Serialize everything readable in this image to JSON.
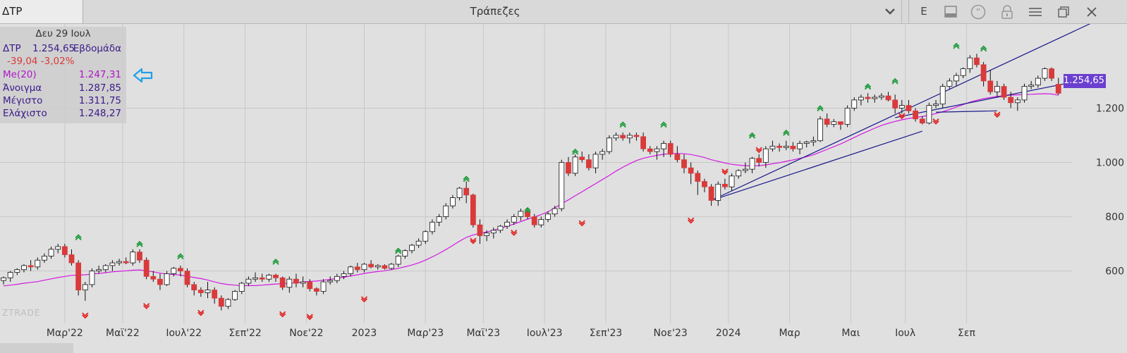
{
  "toolbar": {
    "symbol": "ΔΤΡ",
    "title": "Τράπεζες",
    "dropdown_icon": "chevron-down-icon",
    "e_label": "E",
    "icons": [
      "panel-icon",
      "quote-icon",
      "lock-icon",
      "menu-icon",
      "restore-window-icon",
      "close-icon"
    ]
  },
  "info": {
    "date": "Δευ 29 Ιουλ",
    "symbol": "ΔΤΡ",
    "price": "1.254,65",
    "period": "Εβδομάδα",
    "change": "-39,04 -3,02%",
    "ma_label": "Me(20)",
    "ma_value": "1.247,31",
    "open_label": "Άνοιγμα",
    "open_value": "1.287,85",
    "high_label": "Μέγιστο",
    "high_value": "1.311,75",
    "low_label": "Ελάχιστο",
    "low_value": "1.248,27"
  },
  "logo": "ZTRADE",
  "price_tag": "1.254,65",
  "colors": {
    "up_body": "#ffffff",
    "down_body": "#d93a3a",
    "ma_line": "#d21be0",
    "trend_line": "#1a1a8a",
    "up_arrow": "#1e9a3a",
    "down_arrow": "#e02626",
    "price_tag": "#6b3fd0",
    "pointer_arrow": "#1fa0e8"
  },
  "chart_data": {
    "type": "candlestick",
    "period": "weekly",
    "ylim": [
      420,
      1510
    ],
    "y_ticks": [
      {
        "value": 600,
        "label": "600"
      },
      {
        "value": 800,
        "label": "800"
      },
      {
        "value": 1000,
        "label": "1.000"
      },
      {
        "value": 1200,
        "label": "1.200"
      }
    ],
    "x_labels": [
      {
        "index": 9,
        "label": "Μαρ'22"
      },
      {
        "index": 17.5,
        "label": "Μαϊ'22"
      },
      {
        "index": 26.5,
        "label": "Ιουλ'22"
      },
      {
        "index": 35.5,
        "label": "Σεπ'22"
      },
      {
        "index": 44.5,
        "label": "Νοε'22"
      },
      {
        "index": 53,
        "label": "2023"
      },
      {
        "index": 62,
        "label": "Μαρ'23"
      },
      {
        "index": 70.5,
        "label": "Μαϊ'23"
      },
      {
        "index": 79.5,
        "label": "Ιουλ'23"
      },
      {
        "index": 88.5,
        "label": "Σεπ'23"
      },
      {
        "index": 98,
        "label": "Νοε'23"
      },
      {
        "index": 106.5,
        "label": "2024"
      },
      {
        "index": 115.5,
        "label": "Μαρ"
      },
      {
        "index": 124.5,
        "label": "Μαι"
      },
      {
        "index": 132.5,
        "label": "Ιουλ"
      },
      {
        "index": 141.5,
        "label": "Σεπ"
      }
    ],
    "candles": [
      [
        565,
        580,
        550,
        575
      ],
      [
        575,
        600,
        560,
        595
      ],
      [
        595,
        610,
        585,
        605
      ],
      [
        605,
        625,
        595,
        620
      ],
      [
        620,
        640,
        600,
        615
      ],
      [
        615,
        650,
        605,
        640
      ],
      [
        640,
        665,
        630,
        655
      ],
      [
        655,
        690,
        645,
        680
      ],
      [
        680,
        700,
        665,
        690
      ],
      [
        690,
        700,
        650,
        660
      ],
      [
        660,
        680,
        620,
        630
      ],
      [
        630,
        640,
        510,
        530
      ],
      [
        530,
        560,
        490,
        550
      ],
      [
        550,
        610,
        540,
        600
      ],
      [
        600,
        620,
        590,
        605
      ],
      [
        605,
        625,
        595,
        620
      ],
      [
        620,
        640,
        600,
        630
      ],
      [
        630,
        645,
        620,
        635
      ],
      [
        635,
        650,
        625,
        630
      ],
      [
        630,
        680,
        620,
        670
      ],
      [
        670,
        680,
        630,
        640
      ],
      [
        640,
        650,
        570,
        580
      ],
      [
        580,
        600,
        560,
        570
      ],
      [
        570,
        590,
        530,
        550
      ],
      [
        550,
        600,
        545,
        590
      ],
      [
        590,
        615,
        580,
        610
      ],
      [
        610,
        620,
        580,
        600
      ],
      [
        600,
        610,
        540,
        550
      ],
      [
        550,
        560,
        510,
        530
      ],
      [
        530,
        540,
        505,
        520
      ],
      [
        520,
        560,
        500,
        530
      ],
      [
        530,
        540,
        480,
        500
      ],
      [
        500,
        510,
        455,
        470
      ],
      [
        470,
        500,
        460,
        495
      ],
      [
        495,
        530,
        490,
        525
      ],
      [
        525,
        560,
        515,
        555
      ],
      [
        555,
        580,
        545,
        570
      ],
      [
        570,
        595,
        560,
        575
      ],
      [
        575,
        590,
        560,
        570
      ],
      [
        570,
        590,
        560,
        585
      ],
      [
        585,
        590,
        560,
        575
      ],
      [
        575,
        580,
        530,
        540
      ],
      [
        540,
        580,
        520,
        570
      ],
      [
        570,
        590,
        540,
        555
      ],
      [
        555,
        580,
        540,
        560
      ],
      [
        560,
        570,
        525,
        535
      ],
      [
        535,
        540,
        510,
        525
      ],
      [
        525,
        570,
        515,
        560
      ],
      [
        560,
        580,
        550,
        565
      ],
      [
        565,
        590,
        555,
        580
      ],
      [
        580,
        600,
        570,
        590
      ],
      [
        590,
        620,
        580,
        615
      ],
      [
        615,
        630,
        595,
        605
      ],
      [
        605,
        630,
        595,
        625
      ],
      [
        625,
        640,
        610,
        615
      ],
      [
        615,
        625,
        605,
        620
      ],
      [
        620,
        625,
        605,
        610
      ],
      [
        610,
        630,
        605,
        625
      ],
      [
        625,
        660,
        615,
        655
      ],
      [
        655,
        680,
        645,
        675
      ],
      [
        675,
        700,
        665,
        695
      ],
      [
        695,
        720,
        685,
        710
      ],
      [
        710,
        750,
        700,
        745
      ],
      [
        745,
        790,
        735,
        780
      ],
      [
        780,
        810,
        765,
        800
      ],
      [
        800,
        850,
        790,
        840
      ],
      [
        840,
        880,
        830,
        870
      ],
      [
        870,
        910,
        860,
        905
      ],
      [
        905,
        930,
        850,
        880
      ],
      [
        880,
        885,
        760,
        770
      ],
      [
        770,
        790,
        700,
        730
      ],
      [
        730,
        750,
        710,
        740
      ],
      [
        740,
        760,
        720,
        750
      ],
      [
        750,
        770,
        740,
        765
      ],
      [
        765,
        790,
        755,
        780
      ],
      [
        780,
        810,
        770,
        800
      ],
      [
        800,
        830,
        785,
        820
      ],
      [
        820,
        830,
        790,
        800
      ],
      [
        800,
        810,
        760,
        770
      ],
      [
        770,
        800,
        760,
        790
      ],
      [
        790,
        820,
        780,
        810
      ],
      [
        810,
        840,
        800,
        830
      ],
      [
        830,
        1010,
        820,
        1000
      ],
      [
        1000,
        1020,
        950,
        960
      ],
      [
        960,
        1030,
        950,
        1020
      ],
      [
        1020,
        1040,
        1000,
        1010
      ],
      [
        1010,
        1030,
        970,
        980
      ],
      [
        980,
        1040,
        960,
        1030
      ],
      [
        1030,
        1050,
        1010,
        1040
      ],
      [
        1040,
        1100,
        1030,
        1090
      ],
      [
        1090,
        1110,
        1080,
        1100
      ],
      [
        1100,
        1110,
        1080,
        1090
      ],
      [
        1090,
        1110,
        1070,
        1100
      ],
      [
        1100,
        1110,
        1080,
        1095
      ],
      [
        1095,
        1110,
        1040,
        1050
      ],
      [
        1050,
        1060,
        1030,
        1040
      ],
      [
        1040,
        1060,
        1010,
        1050
      ],
      [
        1050,
        1080,
        1020,
        1070
      ],
      [
        1070,
        1080,
        1020,
        1030
      ],
      [
        1030,
        1060,
        1000,
        1010
      ],
      [
        1010,
        1030,
        960,
        980
      ],
      [
        980,
        1000,
        920,
        960
      ],
      [
        960,
        970,
        880,
        930
      ],
      [
        930,
        940,
        890,
        910
      ],
      [
        910,
        920,
        840,
        860
      ],
      [
        860,
        930,
        840,
        920
      ],
      [
        920,
        940,
        900,
        910
      ],
      [
        910,
        960,
        895,
        950
      ],
      [
        950,
        975,
        940,
        970
      ],
      [
        970,
        1000,
        960,
        975
      ],
      [
        975,
        1020,
        960,
        1015
      ],
      [
        1015,
        1030,
        985,
        1000
      ],
      [
        1000,
        1060,
        980,
        1050
      ],
      [
        1050,
        1080,
        1040,
        1060
      ],
      [
        1060,
        1070,
        1040,
        1055
      ],
      [
        1055,
        1080,
        1045,
        1060
      ],
      [
        1060,
        1075,
        1040,
        1050
      ],
      [
        1050,
        1080,
        1030,
        1070
      ],
      [
        1070,
        1080,
        1055,
        1075
      ],
      [
        1075,
        1095,
        1060,
        1080
      ],
      [
        1080,
        1170,
        1075,
        1160
      ],
      [
        1160,
        1180,
        1130,
        1140
      ],
      [
        1140,
        1160,
        1130,
        1150
      ],
      [
        1150,
        1150,
        1120,
        1140
      ],
      [
        1140,
        1210,
        1130,
        1200
      ],
      [
        1200,
        1240,
        1190,
        1230
      ],
      [
        1230,
        1250,
        1210,
        1240
      ],
      [
        1240,
        1255,
        1220,
        1235
      ],
      [
        1235,
        1250,
        1220,
        1240
      ],
      [
        1240,
        1255,
        1230,
        1245
      ],
      [
        1245,
        1260,
        1225,
        1230
      ],
      [
        1230,
        1250,
        1180,
        1200
      ],
      [
        1200,
        1230,
        1180,
        1210
      ],
      [
        1210,
        1230,
        1180,
        1190
      ],
      [
        1190,
        1200,
        1150,
        1160
      ],
      [
        1160,
        1170,
        1140,
        1145
      ],
      [
        1145,
        1220,
        1140,
        1210
      ],
      [
        1210,
        1230,
        1200,
        1215
      ],
      [
        1215,
        1290,
        1200,
        1280
      ],
      [
        1280,
        1310,
        1270,
        1300
      ],
      [
        1300,
        1330,
        1280,
        1320
      ],
      [
        1320,
        1350,
        1310,
        1345
      ],
      [
        1345,
        1395,
        1330,
        1385
      ],
      [
        1385,
        1400,
        1350,
        1360
      ],
      [
        1360,
        1370,
        1280,
        1300
      ],
      [
        1300,
        1340,
        1250,
        1260
      ],
      [
        1260,
        1300,
        1240,
        1280
      ],
      [
        1280,
        1290,
        1230,
        1240
      ],
      [
        1240,
        1260,
        1200,
        1220
      ],
      [
        1220,
        1240,
        1190,
        1230
      ],
      [
        1230,
        1290,
        1220,
        1280
      ],
      [
        1280,
        1300,
        1270,
        1285
      ],
      [
        1285,
        1320,
        1275,
        1310
      ],
      [
        1310,
        1350,
        1300,
        1345
      ],
      [
        1345,
        1350,
        1300,
        1310
      ],
      [
        1287.85,
        1311.75,
        1248.27,
        1254.65
      ]
    ],
    "ma20": [
      545,
      548,
      551,
      555,
      558,
      561,
      566,
      571,
      576,
      580,
      584,
      585,
      586,
      589,
      591,
      594,
      597,
      599,
      601,
      603,
      604,
      601,
      597,
      592,
      589,
      587,
      585,
      581,
      576,
      572,
      567,
      560,
      554,
      550,
      548,
      546,
      546,
      546,
      548,
      550,
      552,
      553,
      555,
      557,
      560,
      562,
      563,
      566,
      569,
      573,
      577,
      582,
      586,
      591,
      595,
      598,
      601,
      605,
      610,
      616,
      622,
      630,
      640,
      652,
      665,
      679,
      694,
      710,
      724,
      733,
      739,
      744,
      750,
      757,
      765,
      773,
      782,
      791,
      799,
      808,
      818,
      833,
      848,
      862,
      877,
      892,
      907,
      922,
      937,
      952,
      968,
      982,
      995,
      1007,
      1015,
      1021,
      1026,
      1030,
      1033,
      1033,
      1032,
      1029,
      1024,
      1018,
      1010,
      1004,
      998,
      993,
      990,
      988,
      987,
      988,
      991,
      995,
      999,
      1004,
      1009,
      1015,
      1021,
      1028,
      1038,
      1048,
      1058,
      1068,
      1080,
      1092,
      1104,
      1115,
      1126,
      1136,
      1144,
      1151,
      1157,
      1162,
      1166,
      1169,
      1174,
      1180,
      1187,
      1195,
      1204,
      1213,
      1222,
      1229,
      1235,
      1239,
      1243,
      1246,
      1248,
      1249,
      1250,
      1251,
      1252,
      1253,
      1252,
      1247.31
    ],
    "arrows_up": [
      {
        "index": 11,
        "value": 730
      },
      {
        "index": 20,
        "value": 705
      },
      {
        "index": 26,
        "value": 660
      },
      {
        "index": 40,
        "value": 640
      },
      {
        "index": 58,
        "value": 680
      },
      {
        "index": 68,
        "value": 945
      },
      {
        "index": 77,
        "value": 830
      },
      {
        "index": 84,
        "value": 1045
      },
      {
        "index": 91,
        "value": 1145
      },
      {
        "index": 97,
        "value": 1145
      },
      {
        "index": 110,
        "value": 1105
      },
      {
        "index": 115,
        "value": 1115
      },
      {
        "index": 120,
        "value": 1205
      },
      {
        "index": 127,
        "value": 1285
      },
      {
        "index": 131,
        "value": 1305
      },
      {
        "index": 140,
        "value": 1435
      },
      {
        "index": 144,
        "value": 1425
      }
    ],
    "arrows_down": [
      {
        "index": 12,
        "value": 430
      },
      {
        "index": 21,
        "value": 465
      },
      {
        "index": 29,
        "value": 440
      },
      {
        "index": 41,
        "value": 435
      },
      {
        "index": 45,
        "value": 425
      },
      {
        "index": 53,
        "value": 490
      },
      {
        "index": 69,
        "value": 705
      },
      {
        "index": 75,
        "value": 735
      },
      {
        "index": 85,
        "value": 770
      },
      {
        "index": 101,
        "value": 780
      },
      {
        "index": 106,
        "value": 960
      },
      {
        "index": 111,
        "value": 1040
      },
      {
        "index": 132,
        "value": 1165
      },
      {
        "index": 137,
        "value": 1145
      },
      {
        "index": 146,
        "value": 1170
      }
    ],
    "trendlines": [
      {
        "from": [
          104,
          860
        ],
        "to": [
          160,
          1515
        ]
      },
      {
        "from": [
          104,
          860
        ],
        "to": [
          135,
          1115
        ]
      },
      {
        "from": [
          131,
          1165
        ],
        "to": [
          160,
          1310
        ]
      },
      {
        "from": [
          137,
          1185
        ],
        "to": [
          146,
          1190
        ]
      }
    ]
  }
}
